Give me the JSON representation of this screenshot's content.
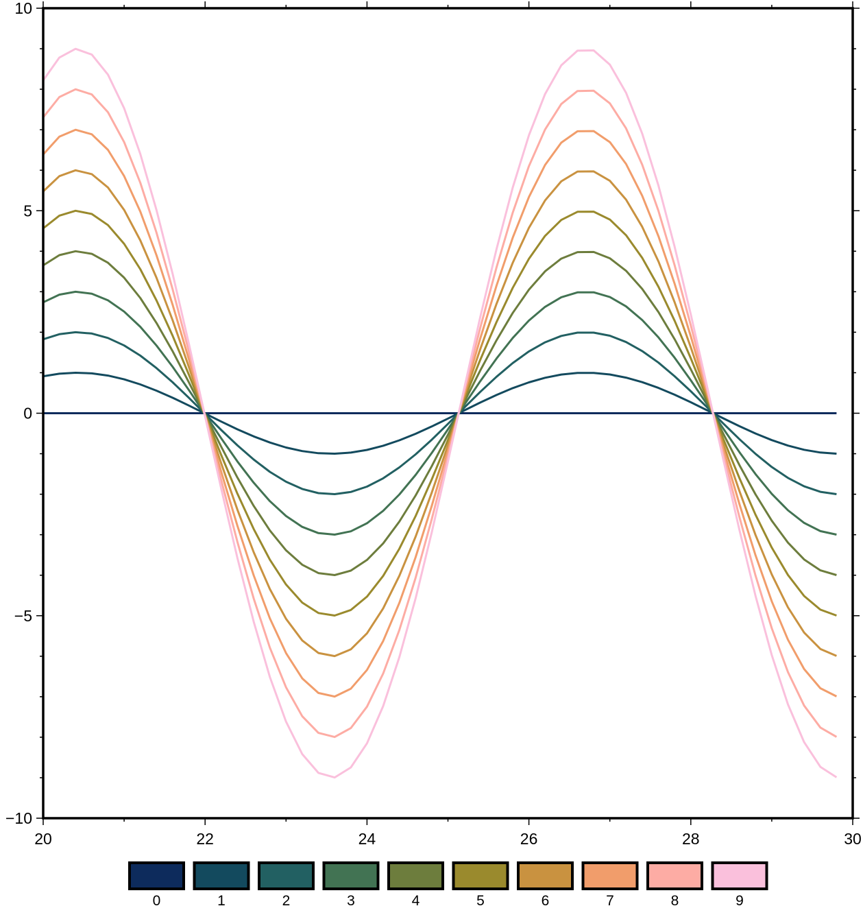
{
  "chart_data": {
    "type": "line",
    "title": "",
    "xlabel": "",
    "ylabel": "",
    "xlim": [
      20,
      30
    ],
    "ylim": [
      -10,
      10
    ],
    "x_ticks": [
      "20",
      "22",
      "24",
      "26",
      "28",
      "30"
    ],
    "x_tick_values": [
      20,
      22,
      24,
      26,
      28,
      30
    ],
    "x_minor_step": 1,
    "y_ticks": [
      "−10",
      "−5",
      "0",
      "5",
      "10"
    ],
    "y_tick_values": [
      -10,
      -5,
      0,
      5,
      10
    ],
    "y_minor_step": 1,
    "grid": false,
    "legend": "bottom colorbar",
    "x": [
      20,
      20.2,
      20.4,
      20.6,
      20.8,
      21,
      21.2,
      21.4,
      21.6,
      21.8,
      22,
      22.2,
      22.4,
      22.6,
      22.8,
      23,
      23.2,
      23.4,
      23.6,
      23.8,
      24,
      24.2,
      24.4,
      24.6,
      24.8,
      25,
      25.2,
      25.4,
      25.6,
      25.8,
      26,
      26.2,
      26.4,
      26.6,
      26.8,
      27,
      27.2,
      27.4,
      27.6,
      27.8,
      28,
      28.2,
      28.4,
      28.6,
      28.8,
      29,
      29.2,
      29.4,
      29.6,
      29.8
    ],
    "base_values": [
      0.9129,
      0.9758,
      0.9998,
      0.9839,
      0.929,
      0.8367,
      0.7113,
      0.5573,
      0.3813,
      0.19,
      -0.0089,
      -0.2073,
      -0.3975,
      -0.5718,
      -0.7236,
      -0.8462,
      -0.9352,
      -0.9867,
      -0.9993,
      -0.9718,
      -0.9056,
      -0.8034,
      -0.6691,
      -0.508,
      -0.3267,
      -0.1324,
      0.0672,
      0.2641,
      0.4505,
      0.619,
      0.7625,
      0.8758,
      0.9543,
      0.9946,
      0.9953,
      0.9564,
      0.8793,
      0.7671,
      0.6245,
      0.4567,
      0.2709,
      0.0742,
      -0.1254,
      -0.32,
      -0.5018,
      -0.6636,
      -0.7988,
      -0.9025,
      -0.9701,
      -0.999
    ],
    "series": [
      {
        "name": "0",
        "scale": 0,
        "color": "#0d2b5c"
      },
      {
        "name": "1",
        "scale": 1,
        "color": "#134a5e"
      },
      {
        "name": "2",
        "scale": 2,
        "color": "#226062"
      },
      {
        "name": "3",
        "scale": 3,
        "color": "#427353"
      },
      {
        "name": "4",
        "scale": 4,
        "color": "#6d7d3d"
      },
      {
        "name": "5",
        "scale": 5,
        "color": "#9a8a2d"
      },
      {
        "name": "6",
        "scale": 6,
        "color": "#c99240"
      },
      {
        "name": "7",
        "scale": 7,
        "color": "#f19d6b"
      },
      {
        "name": "8",
        "scale": 8,
        "color": "#fdaca4"
      },
      {
        "name": "9",
        "scale": 9,
        "color": "#fac0dc"
      }
    ]
  }
}
